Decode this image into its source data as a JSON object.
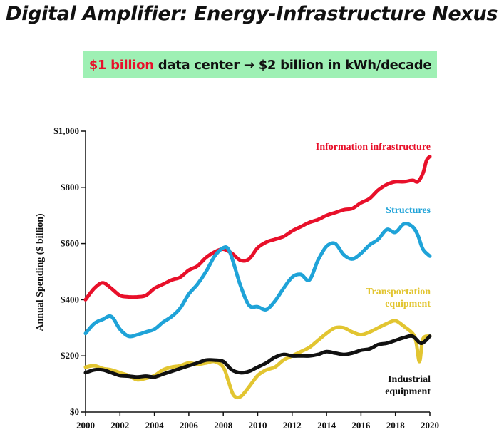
{
  "title": "Digital Amplifier: Energy-Infrastructure Nexus",
  "banner": {
    "highlight": "$1 billion",
    "rest": "data center",
    "arrow": "→",
    "tail": "$2 billion in kWh/decade"
  },
  "colors": {
    "banner_bg": "#9ef0b4",
    "highlight": "#e8102a"
  },
  "chart_data": {
    "type": "line",
    "ylabel": "Annual Spending ($ billion)",
    "xlabel": "",
    "xlim": [
      2000,
      2020
    ],
    "ylim": [
      0,
      1000
    ],
    "xticks": [
      "2000",
      "2002",
      "2004",
      "2006",
      "2008",
      "2010",
      "2012",
      "2014",
      "2016",
      "2018",
      "2020"
    ],
    "yticks": [
      "$0",
      "$200",
      "$400",
      "$600",
      "$800",
      "$1,000"
    ],
    "series": [
      {
        "name": "Information infrastructure",
        "label_lines": [
          "Information infrastructure"
        ],
        "color": "#e8102a",
        "x": [
          2000,
          2000.5,
          2001,
          2001.5,
          2002,
          2002.5,
          2003,
          2003.5,
          2004,
          2004.5,
          2005,
          2005.5,
          2006,
          2006.5,
          2007,
          2007.5,
          2008,
          2008.5,
          2009,
          2009.5,
          2010,
          2010.5,
          2011,
          2011.5,
          2012,
          2012.5,
          2013,
          2013.5,
          2014,
          2014.5,
          2015,
          2015.5,
          2016,
          2016.5,
          2017,
          2017.5,
          2018,
          2018.5,
          2019,
          2019.3,
          2019.6,
          2019.8,
          2020
        ],
        "y": [
          400,
          440,
          460,
          440,
          415,
          410,
          410,
          415,
          440,
          455,
          470,
          480,
          505,
          520,
          550,
          570,
          580,
          565,
          540,
          545,
          585,
          605,
          615,
          625,
          645,
          660,
          675,
          685,
          700,
          710,
          720,
          725,
          745,
          760,
          790,
          810,
          820,
          820,
          825,
          820,
          850,
          895,
          910
        ]
      },
      {
        "name": "Structures",
        "label_lines": [
          "Structures"
        ],
        "color": "#1fa3d8",
        "x": [
          2000,
          2000.5,
          2001,
          2001.5,
          2002,
          2002.5,
          2003,
          2003.5,
          2004,
          2004.5,
          2005,
          2005.5,
          2006,
          2006.5,
          2007,
          2007.5,
          2008,
          2008.3,
          2008.6,
          2009,
          2009.5,
          2010,
          2010.5,
          2011,
          2011.5,
          2012,
          2012.5,
          2013,
          2013.5,
          2014,
          2014.5,
          2015,
          2015.5,
          2016,
          2016.5,
          2017,
          2017.5,
          2018,
          2018.5,
          2019,
          2019.3,
          2019.6,
          2020
        ],
        "y": [
          280,
          315,
          330,
          340,
          295,
          270,
          275,
          285,
          295,
          320,
          340,
          370,
          420,
          455,
          500,
          555,
          585,
          580,
          530,
          450,
          380,
          375,
          365,
          395,
          440,
          480,
          490,
          470,
          540,
          590,
          600,
          560,
          545,
          565,
          595,
          615,
          650,
          640,
          670,
          660,
          630,
          580,
          555
        ]
      },
      {
        "name": "Transportation equipment",
        "label_lines": [
          "Transportation",
          "equipment"
        ],
        "color": "#e2c531",
        "x": [
          2000,
          2000.5,
          2001,
          2001.5,
          2002,
          2002.5,
          2003,
          2003.5,
          2004,
          2004.5,
          2005,
          2005.5,
          2006,
          2006.5,
          2007,
          2007.5,
          2008,
          2008.3,
          2008.6,
          2009,
          2009.5,
          2010,
          2010.5,
          2011,
          2011.5,
          2012,
          2012.5,
          2013,
          2013.5,
          2014,
          2014.5,
          2015,
          2015.5,
          2016,
          2016.5,
          2017,
          2017.5,
          2018,
          2018.5,
          2019,
          2019.2,
          2019.4,
          2019.6,
          2020
        ],
        "y": [
          160,
          165,
          155,
          150,
          140,
          130,
          115,
          120,
          130,
          150,
          160,
          165,
          175,
          170,
          175,
          180,
          160,
          110,
          60,
          55,
          90,
          130,
          150,
          160,
          185,
          200,
          215,
          230,
          255,
          280,
          300,
          300,
          285,
          275,
          285,
          300,
          315,
          325,
          305,
          280,
          250,
          180,
          260,
          270
        ]
      },
      {
        "name": "Industrial equipment",
        "label_lines": [
          "Industrial",
          "equipment"
        ],
        "color": "#111111",
        "x": [
          2000,
          2000.5,
          2001,
          2001.5,
          2002,
          2002.5,
          2003,
          2003.5,
          2004,
          2004.5,
          2005,
          2005.5,
          2006,
          2006.5,
          2007,
          2007.5,
          2008,
          2008.5,
          2009,
          2009.5,
          2010,
          2010.5,
          2011,
          2011.5,
          2012,
          2012.5,
          2013,
          2013.5,
          2014,
          2014.5,
          2015,
          2015.5,
          2016,
          2016.5,
          2017,
          2017.5,
          2018,
          2018.5,
          2019,
          2019.5,
          2020
        ],
        "y": [
          140,
          150,
          150,
          140,
          130,
          128,
          125,
          128,
          125,
          135,
          145,
          155,
          165,
          175,
          185,
          185,
          180,
          150,
          140,
          145,
          160,
          175,
          195,
          205,
          200,
          200,
          200,
          205,
          215,
          210,
          205,
          210,
          220,
          225,
          240,
          245,
          255,
          265,
          270,
          245,
          270
        ]
      }
    ]
  }
}
